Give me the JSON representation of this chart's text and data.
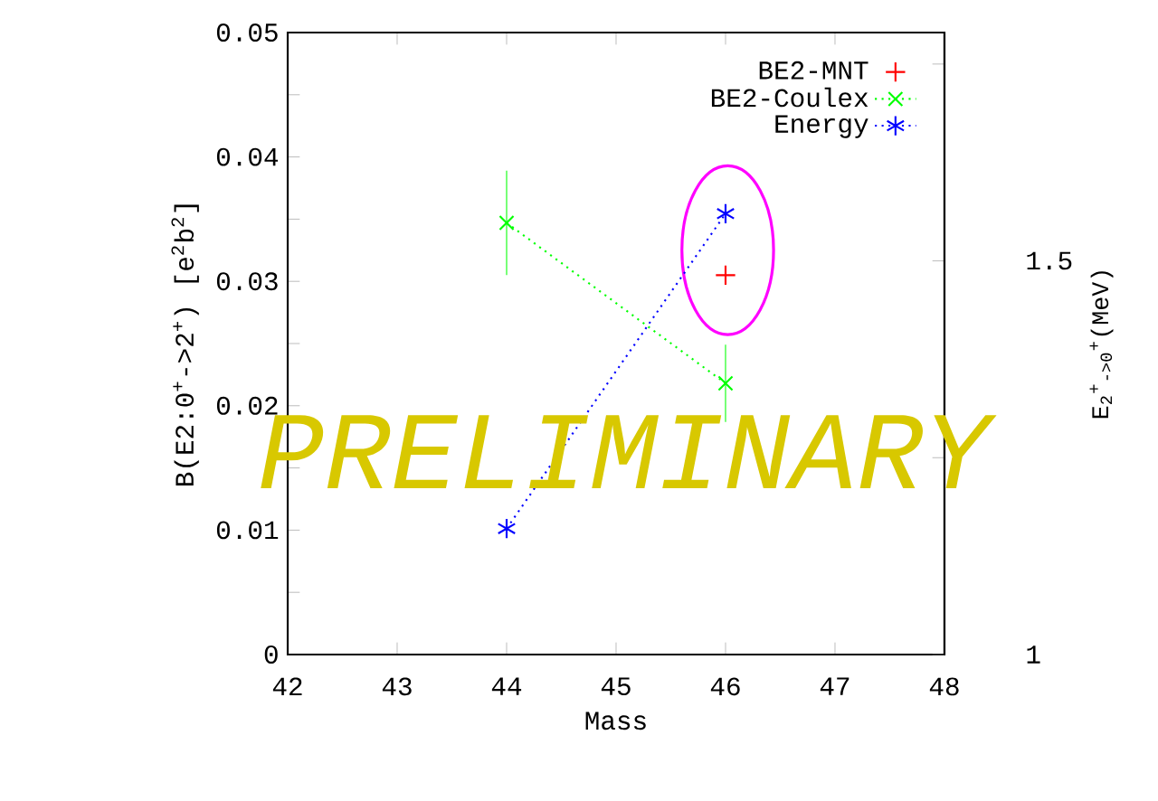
{
  "chart_data": {
    "type": "line",
    "xlabel": "Mass",
    "ylabel": "B(E2:0$^{+}$->2$^{+}$) [e$^{2}$b$^{2}$]",
    "y2label": "E$_{2}$$^{+}$$_{->0}$$^{+}$(MeV)",
    "x": [
      44,
      46
    ],
    "series": [
      {
        "name": "BE2-MNT",
        "type": "scatter",
        "color": "#ff0000",
        "marker": "cross",
        "x": [
          46
        ],
        "values": [
          0.0305
        ]
      },
      {
        "name": "BE2-Coulex",
        "color": "#00ff00",
        "marker": "cross",
        "line_style": "dotted",
        "values": [
          0.0347,
          0.0218
        ],
        "errors": [
          0.0042,
          0.0031
        ]
      },
      {
        "name": "Energy",
        "axis": "y2",
        "color": "#0000ff",
        "marker": "cross",
        "line_style": "dotted",
        "values": [
          1.16,
          1.56
        ]
      }
    ],
    "xlim": [
      42,
      48
    ],
    "xticks": [
      42,
      43,
      44,
      45,
      46,
      47,
      48
    ],
    "ylim": [
      0,
      0.05
    ],
    "yticks": [
      0,
      {
        "value": 0.005,
        "label": null
      },
      0.01,
      {
        "value": 0.015,
        "label": null
      },
      0.02,
      {
        "value": 0.025,
        "label": null
      },
      0.03,
      {
        "value": 0.035,
        "label": null
      },
      0.04,
      {
        "value": 0.045,
        "label": null
      },
      0.05
    ],
    "y2lim": [
      1,
      1.79
    ],
    "y2ticks": [
      1,
      {
        "value": 1.25,
        "label": null
      },
      1.5,
      {
        "value": 1.75,
        "label": null
      }
    ],
    "legend": "top right",
    "grid": false,
    "annotations": [
      "PRELIMINARY"
    ]
  }
}
